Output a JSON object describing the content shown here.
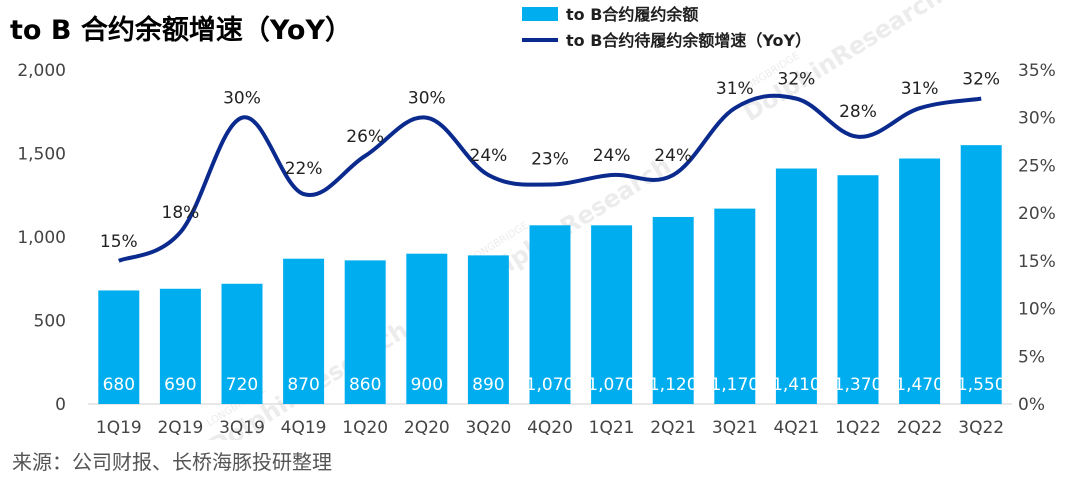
{
  "header": {
    "title": "to B 合约余额增速（YoY）"
  },
  "footer": {
    "source": "来源：公司财报、长桥海豚投研整理"
  },
  "watermark": {
    "brand": "DolphinResearch",
    "sub": "LONGBRIDGE"
  },
  "chart_data": {
    "type": "bar+line",
    "title": "to B 合约余额增速（YoY）",
    "categories": [
      "1Q19",
      "2Q19",
      "3Q19",
      "4Q19",
      "1Q20",
      "2Q20",
      "3Q20",
      "4Q20",
      "1Q21",
      "2Q21",
      "3Q21",
      "4Q21",
      "1Q22",
      "2Q22",
      "3Q22"
    ],
    "series": [
      {
        "name": "to B合约履约余额",
        "type": "bar",
        "axis": "left",
        "color": "#00AEEF",
        "values": [
          680,
          690,
          720,
          870,
          860,
          900,
          890,
          1070,
          1070,
          1120,
          1170,
          1410,
          1370,
          1470,
          1550
        ],
        "labels": [
          "680",
          "690",
          "720",
          "870",
          "860",
          "900",
          "890",
          "1,070",
          "1,070",
          "1,120",
          "1,170",
          "1,410",
          "1,370",
          "1,470",
          "1,550"
        ]
      },
      {
        "name": "to B合约待履约余额增速（YoY）",
        "type": "line",
        "axis": "right",
        "color": "#0B2A8E",
        "values": [
          15,
          18,
          30,
          22,
          26,
          30,
          24,
          23,
          24,
          24,
          31,
          32,
          28,
          31,
          32
        ],
        "labels": [
          "15%",
          "18%",
          "30%",
          "22%",
          "26%",
          "30%",
          "24%",
          "23%",
          "24%",
          "24%",
          "31%",
          "32%",
          "28%",
          "31%",
          "32%"
        ]
      }
    ],
    "y_left": {
      "range": [
        0,
        2000
      ],
      "ticks": [
        0,
        500,
        1000,
        1500,
        2000
      ],
      "tick_labels": [
        "0",
        "500",
        "1,000",
        "1,500",
        "2,000"
      ]
    },
    "y_right": {
      "range": [
        0,
        35
      ],
      "ticks": [
        0,
        5,
        10,
        15,
        20,
        25,
        30,
        35
      ],
      "tick_labels": [
        "0%",
        "5%",
        "10%",
        "15%",
        "20%",
        "25%",
        "30%",
        "35%"
      ]
    },
    "grid": false,
    "legend_position": "top-center"
  }
}
